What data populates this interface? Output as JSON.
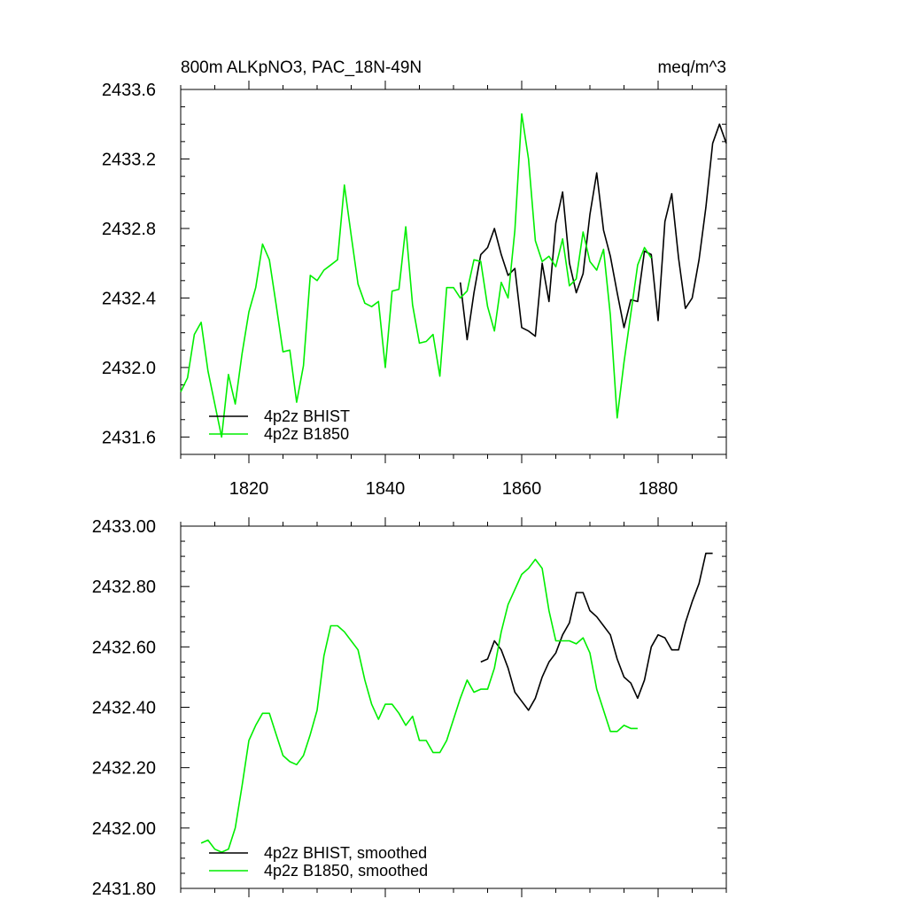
{
  "chart_data": [
    {
      "type": "line",
      "title": "800m ALKpNO3, PAC_18N-49N",
      "units": "meq/m^3",
      "xlabel": "",
      "ylabel": "",
      "xlim": [
        1810,
        1890
      ],
      "ylim": [
        2431.5,
        2433.6
      ],
      "x_ticks": [
        1820,
        1840,
        1860,
        1880
      ],
      "x_tick_labels": [
        "1820",
        "1840",
        "1860",
        "1880"
      ],
      "y_ticks": [
        2431.6,
        2432.0,
        2432.4,
        2432.8,
        2433.2,
        2433.6
      ],
      "y_tick_labels": [
        "2431.6",
        "2432.0",
        "2432.4",
        "2432.8",
        "2433.2",
        "2433.6"
      ],
      "legend_position": "bottom-left",
      "series": [
        {
          "name": "4p2z BHIST",
          "color": "#000000",
          "x": [
            1851,
            1852,
            1853,
            1854,
            1855,
            1856,
            1857,
            1858,
            1859,
            1860,
            1861,
            1862,
            1863,
            1864,
            1865,
            1866,
            1867,
            1868,
            1869,
            1870,
            1871,
            1872,
            1873,
            1874,
            1875,
            1876,
            1877,
            1878,
            1879,
            1880,
            1881,
            1882,
            1883,
            1884,
            1885,
            1886,
            1887,
            1888,
            1889,
            1890
          ],
          "y": [
            2432.49,
            2432.16,
            2432.43,
            2432.65,
            2432.69,
            2432.8,
            2432.65,
            2432.53,
            2432.57,
            2432.23,
            2432.21,
            2432.18,
            2432.6,
            2432.38,
            2432.83,
            2433.01,
            2432.6,
            2432.43,
            2432.54,
            2432.88,
            2433.12,
            2432.79,
            2432.64,
            2432.43,
            2432.23,
            2432.39,
            2432.38,
            2432.67,
            2432.65,
            2432.27,
            2432.84,
            2433.0,
            2432.63,
            2432.34,
            2432.4,
            2432.62,
            2432.92,
            2433.29,
            2433.4,
            2433.29
          ]
        },
        {
          "name": "4p2z B1850",
          "color": "#00ee00",
          "x": [
            1810,
            1811,
            1812,
            1813,
            1814,
            1815,
            1816,
            1817,
            1818,
            1819,
            1820,
            1821,
            1822,
            1823,
            1824,
            1825,
            1826,
            1827,
            1828,
            1829,
            1830,
            1831,
            1832,
            1833,
            1834,
            1835,
            1836,
            1837,
            1838,
            1839,
            1840,
            1841,
            1842,
            1843,
            1844,
            1845,
            1846,
            1847,
            1848,
            1849,
            1850,
            1851,
            1852,
            1853,
            1854,
            1855,
            1856,
            1857,
            1858,
            1859,
            1860,
            1861,
            1862,
            1863,
            1864,
            1865,
            1866,
            1867,
            1868,
            1869,
            1870,
            1871,
            1872,
            1873,
            1874,
            1875,
            1876,
            1877,
            1878,
            1879
          ],
          "y": [
            2431.86,
            2431.94,
            2432.19,
            2432.26,
            2431.98,
            2431.79,
            2431.6,
            2431.96,
            2431.79,
            2432.08,
            2432.32,
            2432.46,
            2432.71,
            2432.62,
            2432.36,
            2432.09,
            2432.1,
            2431.8,
            2432.01,
            2432.53,
            2432.5,
            2432.56,
            2432.59,
            2432.62,
            2433.05,
            2432.76,
            2432.48,
            2432.37,
            2432.35,
            2432.38,
            2432.0,
            2432.44,
            2432.45,
            2432.81,
            2432.36,
            2432.14,
            2432.15,
            2432.19,
            2431.95,
            2432.46,
            2432.46,
            2432.4,
            2432.44,
            2432.62,
            2432.61,
            2432.35,
            2432.21,
            2432.49,
            2432.4,
            2432.79,
            2433.46,
            2433.2,
            2432.73,
            2432.61,
            2432.64,
            2432.58,
            2432.74,
            2432.47,
            2432.51,
            2432.78,
            2432.61,
            2432.56,
            2432.68,
            2432.3,
            2431.71,
            2432.03,
            2432.31,
            2432.59,
            2432.69,
            2432.63
          ]
        }
      ]
    },
    {
      "type": "line",
      "title": "",
      "xlabel": "",
      "ylabel": "",
      "xlim": [
        1810,
        1890
      ],
      "ylim": [
        2431.8,
        2433.0
      ],
      "x_ticks": [
        1820,
        1840,
        1860,
        1880
      ],
      "x_tick_labels": [],
      "y_ticks": [
        2431.8,
        2432.0,
        2432.2,
        2432.4,
        2432.6,
        2432.8,
        2433.0
      ],
      "y_tick_labels": [
        "2431.80",
        "2432.00",
        "2432.20",
        "2432.40",
        "2432.60",
        "2432.80",
        "2433.00"
      ],
      "legend_position": "bottom-left",
      "series": [
        {
          "name": "4p2z BHIST, smoothed",
          "color": "#000000",
          "x": [
            1854,
            1855,
            1856,
            1857,
            1858,
            1859,
            1860,
            1861,
            1862,
            1863,
            1864,
            1865,
            1866,
            1867,
            1868,
            1869,
            1870,
            1871,
            1872,
            1873,
            1874,
            1875,
            1876,
            1877,
            1878,
            1879,
            1880,
            1881,
            1882,
            1883,
            1884,
            1885,
            1886,
            1887,
            1888
          ],
          "y": [
            2432.55,
            2432.56,
            2432.62,
            2432.59,
            2432.53,
            2432.45,
            2432.42,
            2432.39,
            2432.43,
            2432.5,
            2432.55,
            2432.58,
            2432.64,
            2432.68,
            2432.78,
            2432.78,
            2432.72,
            2432.7,
            2432.67,
            2432.64,
            2432.56,
            2432.5,
            2432.48,
            2432.43,
            2432.49,
            2432.6,
            2432.64,
            2432.63,
            2432.59,
            2432.59,
            2432.68,
            2432.75,
            2432.81,
            2432.91,
            2432.91
          ]
        },
        {
          "name": "4p2z B1850, smoothed",
          "color": "#00ee00",
          "x": [
            1813,
            1814,
            1815,
            1816,
            1817,
            1818,
            1819,
            1820,
            1821,
            1822,
            1823,
            1824,
            1825,
            1826,
            1827,
            1828,
            1829,
            1830,
            1831,
            1832,
            1833,
            1834,
            1835,
            1836,
            1837,
            1838,
            1839,
            1840,
            1841,
            1842,
            1843,
            1844,
            1845,
            1846,
            1847,
            1848,
            1849,
            1850,
            1851,
            1852,
            1853,
            1854,
            1855,
            1856,
            1857,
            1858,
            1859,
            1860,
            1861,
            1862,
            1863,
            1864,
            1865,
            1866,
            1867,
            1868,
            1869,
            1870,
            1871,
            1872,
            1873,
            1874,
            1875,
            1876,
            1877
          ],
          "y": [
            2431.95,
            2431.96,
            2431.93,
            2431.92,
            2431.93,
            2432.0,
            2432.14,
            2432.29,
            2432.34,
            2432.38,
            2432.38,
            2432.31,
            2432.24,
            2432.22,
            2432.21,
            2432.24,
            2432.31,
            2432.39,
            2432.57,
            2432.67,
            2432.67,
            2432.65,
            2432.62,
            2432.59,
            2432.49,
            2432.41,
            2432.36,
            2432.41,
            2432.41,
            2432.38,
            2432.34,
            2432.37,
            2432.29,
            2432.29,
            2432.25,
            2432.25,
            2432.29,
            2432.36,
            2432.43,
            2432.49,
            2432.45,
            2432.46,
            2432.46,
            2432.53,
            2432.65,
            2432.74,
            2432.79,
            2432.84,
            2432.86,
            2432.89,
            2432.86,
            2432.72,
            2432.62,
            2432.62,
            2432.62,
            2432.61,
            2432.63,
            2432.58,
            2432.46,
            2432.39,
            2432.32,
            2432.32,
            2432.34,
            2432.33,
            2432.33
          ]
        }
      ]
    }
  ]
}
